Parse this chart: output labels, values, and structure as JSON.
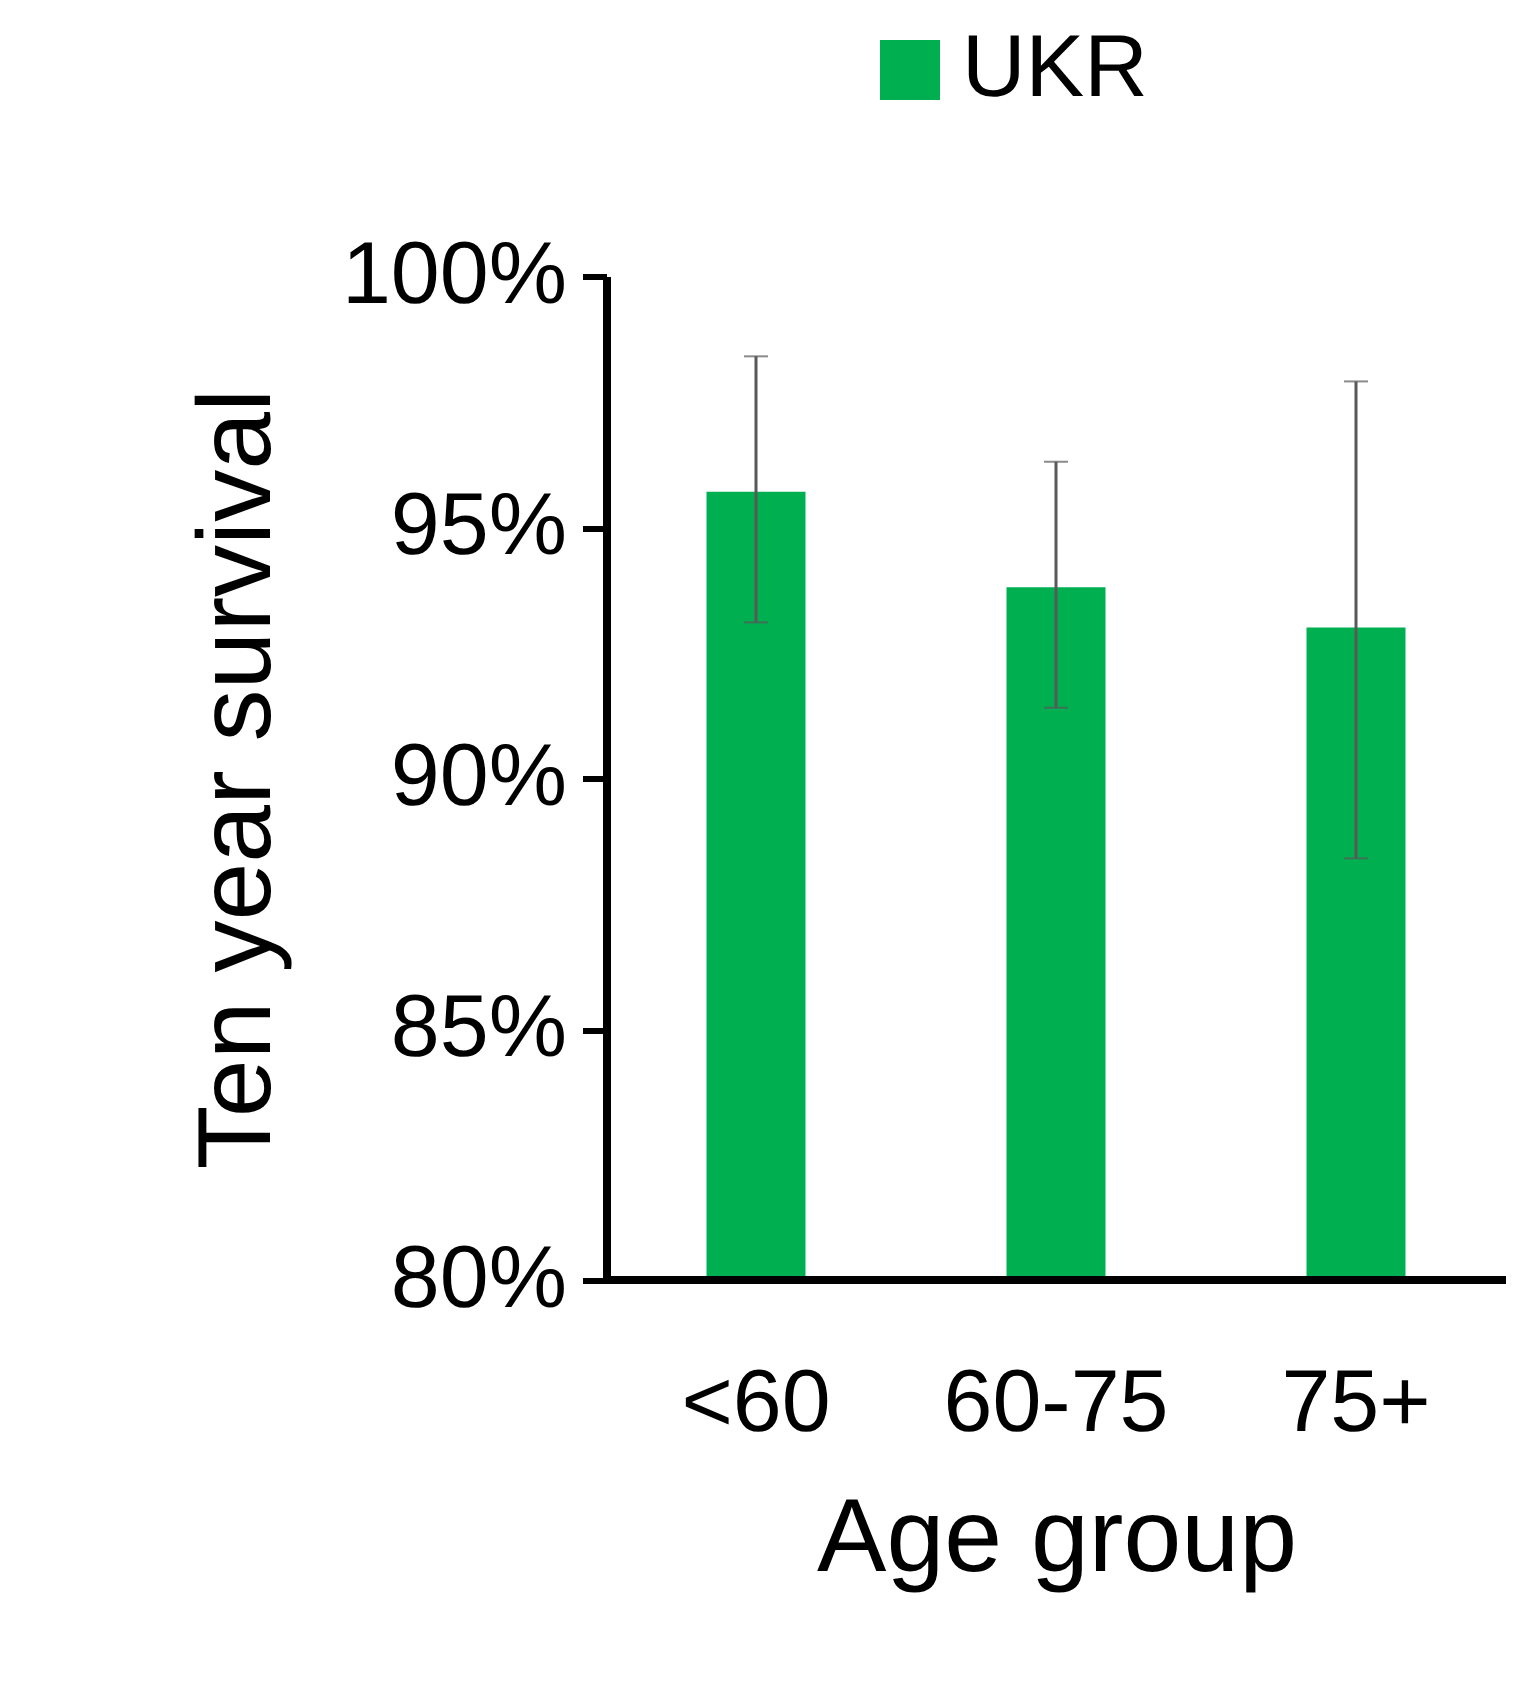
{
  "chart_data": {
    "type": "bar",
    "xlabel": "Age group",
    "ylabel": "Ten year survival",
    "categories": [
      "<60",
      "60-75",
      "75+"
    ],
    "series": [
      {
        "name": "UKR",
        "color": "#00b050",
        "values": [
          95.7,
          93.8,
          93.0
        ],
        "errors": [
          [
            93.1,
            98.4
          ],
          [
            91.4,
            96.3
          ],
          [
            88.4,
            97.9
          ]
        ]
      }
    ],
    "ylim": [
      80,
      100
    ],
    "yticks": [
      {
        "value": 80,
        "label": "80%"
      },
      {
        "value": 85,
        "label": "85%"
      },
      {
        "value": 90,
        "label": "90%"
      },
      {
        "value": 95,
        "label": "95%"
      },
      {
        "value": 100,
        "label": "100%"
      }
    ],
    "grid": false,
    "legend": "top"
  }
}
